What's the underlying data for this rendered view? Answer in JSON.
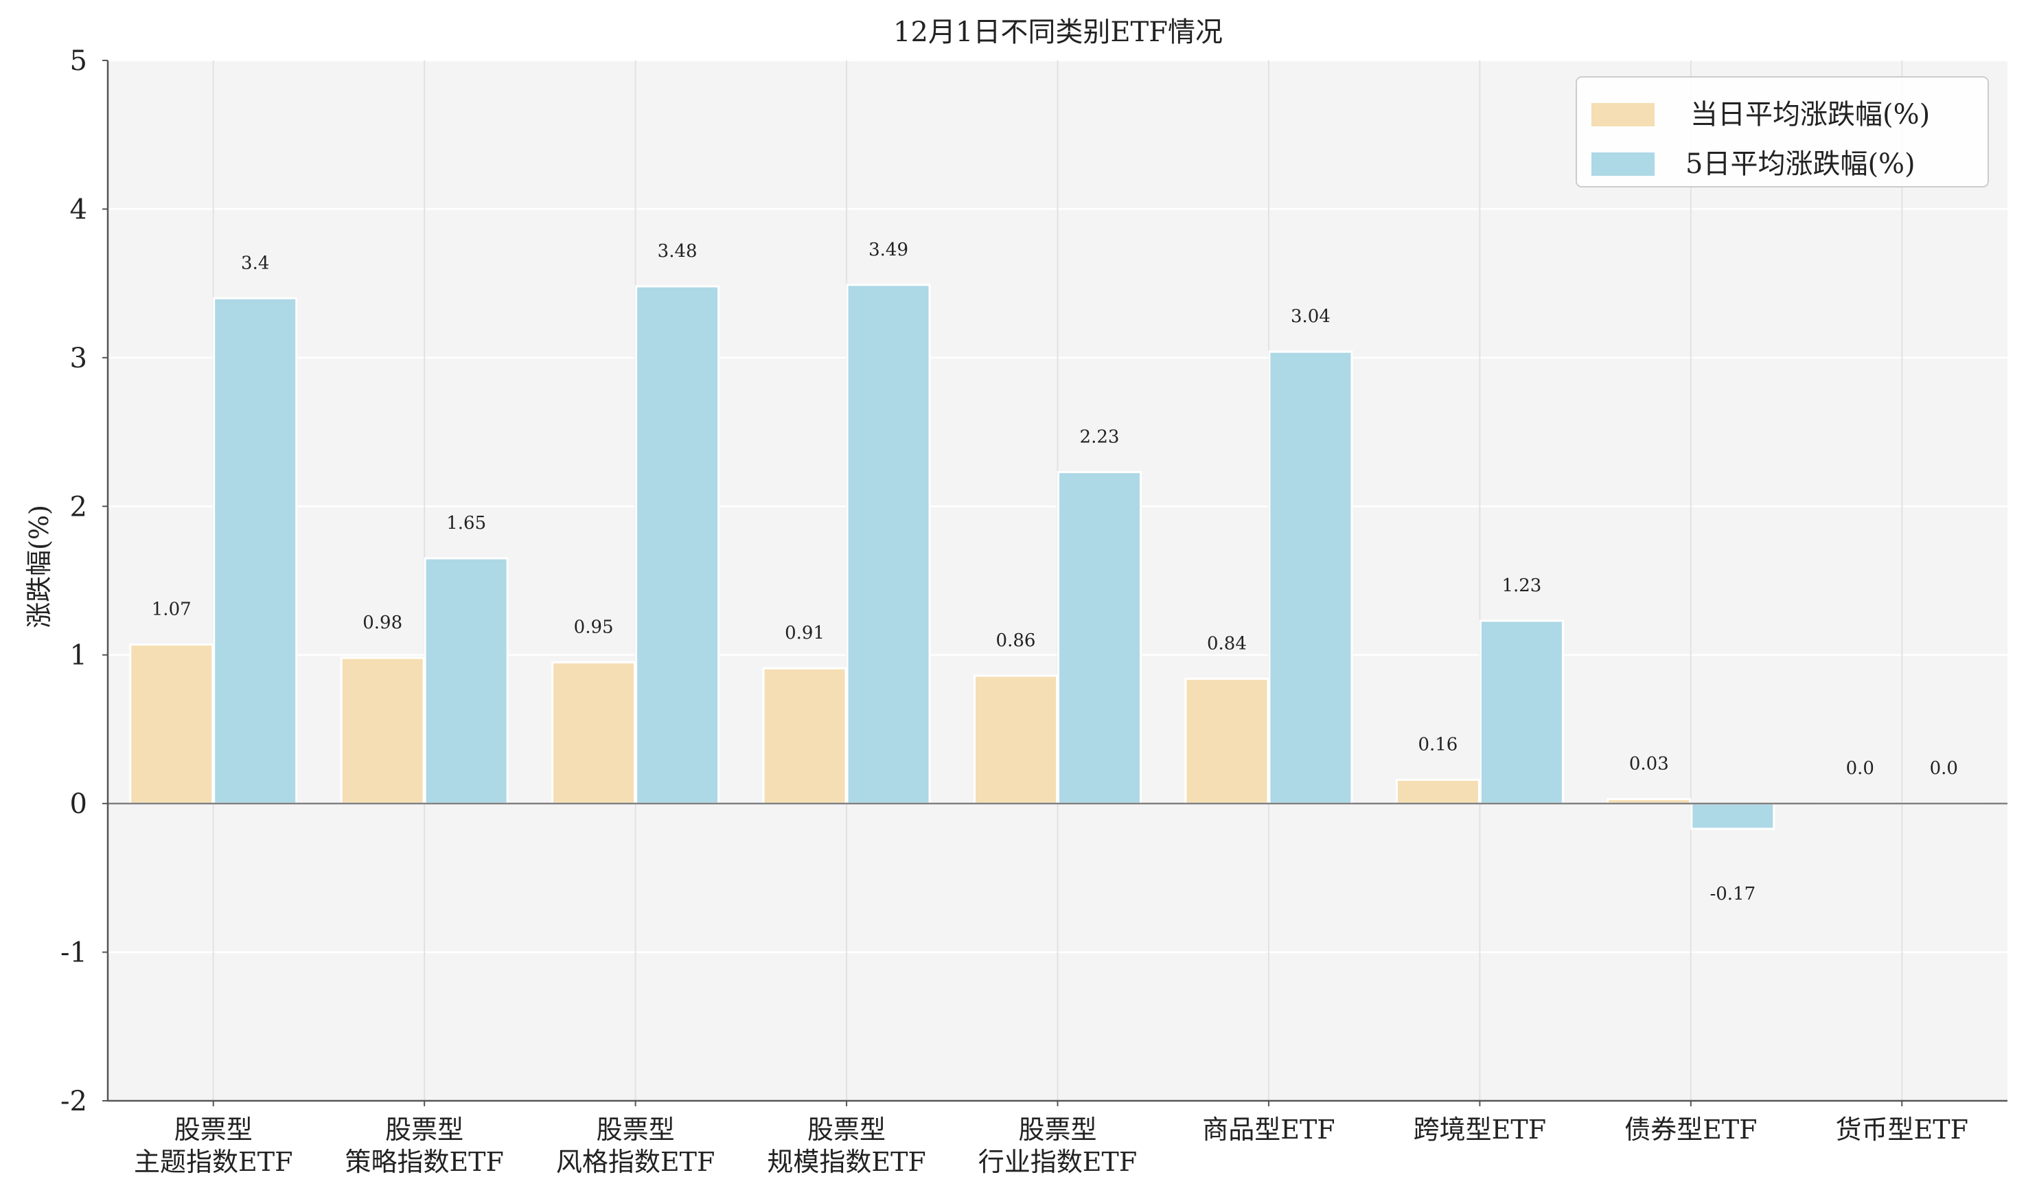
{
  "chart_data": {
    "type": "bar",
    "title": "12月1日不同类别ETF情况",
    "ylabel": "涨跌幅(%)",
    "xlabel": "",
    "ylim": [
      -2,
      5
    ],
    "yticks": [
      -2,
      -1,
      0,
      1,
      2,
      3,
      4,
      5
    ],
    "grid": true,
    "legend_position": "top-right",
    "categories": [
      [
        "股票型",
        "主题指数ETF"
      ],
      [
        "股票型",
        "策略指数ETF"
      ],
      [
        "股票型",
        "风格指数ETF"
      ],
      [
        "股票型",
        "规模指数ETF"
      ],
      [
        "股票型",
        "行业指数ETF"
      ],
      [
        "商品型ETF"
      ],
      [
        "跨境型ETF"
      ],
      [
        "债券型ETF"
      ],
      [
        "货币型ETF"
      ]
    ],
    "series": [
      {
        "name": "当日平均涨跌幅(%)",
        "color": "#f5deb3",
        "values": [
          1.07,
          0.98,
          0.95,
          0.91,
          0.86,
          0.84,
          0.16,
          0.03,
          0.0
        ],
        "labels": [
          "1.07",
          "0.98",
          "0.95",
          "0.91",
          "0.86",
          "0.84",
          "0.16",
          "0.03",
          "0.0"
        ]
      },
      {
        "name": "5日平均涨跌幅(%)",
        "color": "#add8e6",
        "values": [
          3.4,
          1.65,
          3.48,
          3.49,
          2.23,
          3.04,
          1.23,
          -0.17,
          0.0
        ],
        "labels": [
          "3.4",
          "1.65",
          "3.48",
          "3.49",
          "2.23",
          "3.04",
          "1.23",
          "-0.17",
          "0.0"
        ]
      }
    ]
  }
}
